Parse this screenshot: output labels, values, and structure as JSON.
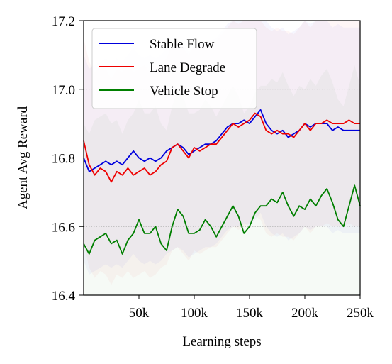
{
  "chart_data": {
    "type": "line",
    "title": "",
    "xlabel": "Learning steps",
    "ylabel": "Agent Avg Reward",
    "xlim": [
      0,
      250000
    ],
    "ylim": [
      16.4,
      17.2
    ],
    "x_ticks": [
      {
        "value": 50000,
        "label": "50k"
      },
      {
        "value": 100000,
        "label": "100k"
      },
      {
        "value": 150000,
        "label": "150k"
      },
      {
        "value": 200000,
        "label": "200k"
      },
      {
        "value": 250000,
        "label": "250k"
      }
    ],
    "y_ticks": [
      {
        "value": 16.4,
        "label": "16.4"
      },
      {
        "value": 16.6,
        "label": "16.6"
      },
      {
        "value": 16.8,
        "label": "16.8"
      },
      {
        "value": 17.0,
        "label": "17.0"
      },
      {
        "value": 17.2,
        "label": "17.2"
      }
    ],
    "grid": "horizontal-dotted",
    "legend_position": "top-left",
    "x": [
      0,
      5000,
      10000,
      15000,
      20000,
      25000,
      30000,
      35000,
      40000,
      45000,
      50000,
      55000,
      60000,
      65000,
      70000,
      75000,
      80000,
      85000,
      90000,
      95000,
      100000,
      105000,
      110000,
      115000,
      120000,
      125000,
      130000,
      135000,
      140000,
      145000,
      150000,
      155000,
      160000,
      165000,
      170000,
      175000,
      180000,
      185000,
      190000,
      195000,
      200000,
      205000,
      210000,
      215000,
      220000,
      225000,
      230000,
      235000,
      240000,
      245000,
      250000
    ],
    "series": [
      {
        "name": "Stable Flow",
        "color": "#0000dd",
        "values": [
          16.8,
          16.76,
          16.77,
          16.78,
          16.79,
          16.78,
          16.79,
          16.78,
          16.8,
          16.82,
          16.8,
          16.79,
          16.8,
          16.79,
          16.8,
          16.82,
          16.83,
          16.84,
          16.83,
          16.81,
          16.82,
          16.83,
          16.84,
          16.84,
          16.85,
          16.87,
          16.89,
          16.9,
          16.9,
          16.91,
          16.9,
          16.92,
          16.94,
          16.9,
          16.88,
          16.87,
          16.88,
          16.86,
          16.87,
          16.88,
          16.9,
          16.89,
          16.9,
          16.9,
          16.9,
          16.88,
          16.89,
          16.88,
          16.88,
          16.88,
          16.88
        ]
      },
      {
        "name": "Lane Degrade",
        "color": "#ee0000",
        "values": [
          16.85,
          16.78,
          16.75,
          16.77,
          16.76,
          16.73,
          16.76,
          16.75,
          16.77,
          16.75,
          16.76,
          16.77,
          16.75,
          16.76,
          16.78,
          16.79,
          16.83,
          16.84,
          16.82,
          16.8,
          16.83,
          16.82,
          16.83,
          16.84,
          16.84,
          16.86,
          16.88,
          16.9,
          16.89,
          16.9,
          16.91,
          16.93,
          16.92,
          16.88,
          16.87,
          16.88,
          16.87,
          16.87,
          16.86,
          16.88,
          16.9,
          16.88,
          16.9,
          16.9,
          16.91,
          16.9,
          16.9,
          16.9,
          16.91,
          16.9,
          16.9
        ]
      },
      {
        "name": "Vehicle Stop",
        "color": "#007f00",
        "values": [
          16.55,
          16.52,
          16.56,
          16.57,
          16.58,
          16.55,
          16.56,
          16.52,
          16.56,
          16.58,
          16.62,
          16.58,
          16.58,
          16.6,
          16.55,
          16.53,
          16.6,
          16.65,
          16.63,
          16.58,
          16.58,
          16.59,
          16.62,
          16.6,
          16.57,
          16.6,
          16.63,
          16.66,
          16.63,
          16.58,
          16.6,
          16.64,
          16.66,
          16.66,
          16.68,
          16.67,
          16.7,
          16.66,
          16.63,
          16.66,
          16.65,
          16.68,
          16.66,
          16.69,
          16.71,
          16.67,
          16.62,
          16.6,
          16.66,
          16.72,
          16.66
        ]
      }
    ]
  }
}
